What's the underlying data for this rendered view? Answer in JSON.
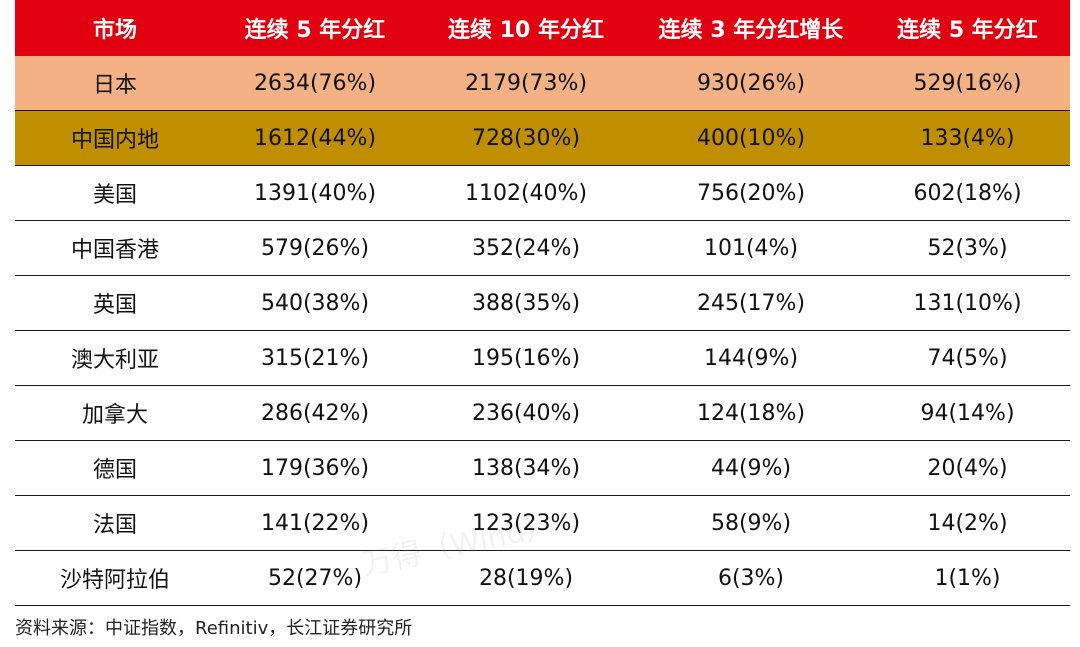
{
  "table": {
    "headers": [
      "市场",
      "连续 5 年分红",
      "连续 10 年分红",
      "连续 3 年分红增长",
      "连续 5 年分红"
    ],
    "rows": [
      [
        "日本",
        "2634(76%)",
        "2179(73%)",
        "930(26%)",
        "529(16%)"
      ],
      [
        "中国内地",
        "1612(44%)",
        "728(30%)",
        "400(10%)",
        "133(4%)"
      ],
      [
        "美国",
        "1391(40%)",
        "1102(40%)",
        "756(20%)",
        "602(18%)"
      ],
      [
        "中国香港",
        "579(26%)",
        "352(24%)",
        "101(4%)",
        "52(3%)"
      ],
      [
        "英国",
        "540(38%)",
        "388(35%)",
        "245(17%)",
        "131(10%)"
      ],
      [
        "澳大利亚",
        "315(21%)",
        "195(16%)",
        "144(9%)",
        "74(5%)"
      ],
      [
        "加拿大",
        "286(42%)",
        "236(40%)",
        "124(18%)",
        "94(14%)"
      ],
      [
        "德国",
        "179(36%)",
        "138(34%)",
        "44(9%)",
        "20(4%)"
      ],
      [
        "法国",
        "141(22%)",
        "123(23%)",
        "58(9%)",
        "14(2%)"
      ],
      [
        "沙特阿拉伯",
        "52(27%)",
        "28(19%)",
        "6(3%)",
        "1(1%)"
      ]
    ]
  },
  "source": "资料来源：中证指数，Refinitiv，长江证券研究所",
  "watermark": "万得（Wind）",
  "colors": {
    "header_bg": "#e0000f",
    "japan_row_bg": "#f4b183",
    "mainland_row_bg": "#bf8f00"
  }
}
